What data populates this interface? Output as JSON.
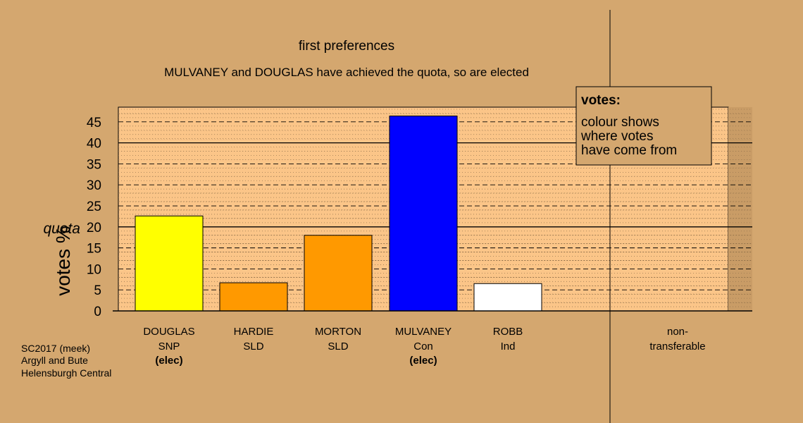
{
  "chart_data": {
    "type": "bar",
    "title": "first preferences",
    "subtitle": "MULVANEY and DOUGLAS have achieved the quota, so are elected",
    "ylabel": "votes %",
    "ylim": [
      0,
      48.5
    ],
    "yticks": [
      0,
      5,
      10,
      15,
      20,
      25,
      30,
      35,
      40,
      45
    ],
    "quota": {
      "label": "quota",
      "value": 20
    },
    "grid": true,
    "legend_position": "top-right",
    "categories": [
      {
        "name": "DOUGLAS",
        "party": "SNP",
        "status": "(elec)",
        "value": 22.6,
        "color": "#ffff00"
      },
      {
        "name": "HARDIE",
        "party": "SLD",
        "status": "",
        "value": 6.7,
        "color": "#ff9900"
      },
      {
        "name": "MORTON",
        "party": "SLD",
        "status": "",
        "value": 18.0,
        "color": "#ff9900"
      },
      {
        "name": "MULVANEY",
        "party": "Con",
        "status": "(elec)",
        "value": 46.4,
        "color": "#0000ff"
      },
      {
        "name": "ROBB",
        "party": "Ind",
        "status": "",
        "value": 6.5,
        "color": "#ffffff"
      }
    ],
    "extra_column": {
      "line1": "non-",
      "line2": "transferable",
      "value": 0
    }
  },
  "legend": {
    "title": "votes:",
    "lines": [
      "colour shows",
      "where votes",
      "have come from"
    ]
  },
  "footer": {
    "lines": [
      "SC2017 (meek)",
      "Argyll and Bute",
      "Helensburgh Central"
    ]
  },
  "colors": {
    "background": "#d4a76f",
    "plot_background": "#fbc588",
    "legend_background": "#d4a76f"
  }
}
